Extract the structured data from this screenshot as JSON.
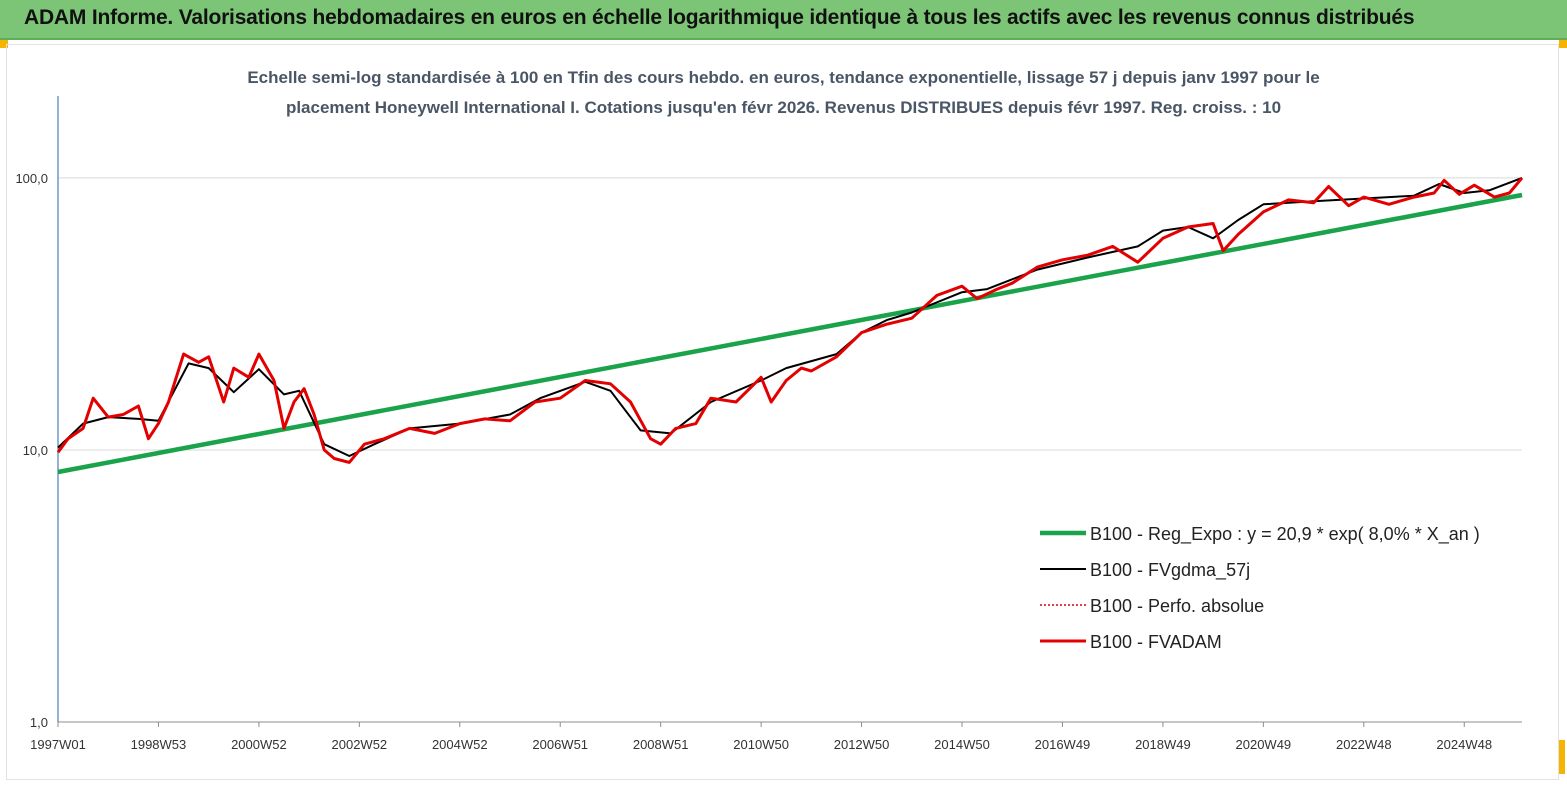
{
  "header": {
    "title": "ADAM Informe. Valorisations hebdomadaires en euros en échelle logarithmique identique à tous les actifs avec les revenus connus distribués"
  },
  "colors": {
    "banner": "#7cc576",
    "reg_expo": "#1aa34a",
    "fvgdma": "#000000",
    "perfo": "#e00000",
    "fvadam": "#e30000",
    "corner": "#f4b400"
  },
  "chart_data": {
    "type": "line",
    "title_line1": "Echelle semi-log standardisée à 100 en Tfin des cours hebdo. en euros, tendance exponentielle, lissage 57 j depuis janv 1997 pour le",
    "title_line2": "placement Honeywell International I. Cotations jusqu'en févr 2026. Revenus DISTRIBUES depuis févr 1997. Reg. croiss. : 10",
    "y_scale": "log",
    "ylim": [
      1,
      200
    ],
    "y_ticks": [
      {
        "value": 1,
        "label": "1,0"
      },
      {
        "value": 10,
        "label": "10,0"
      },
      {
        "value": 100,
        "label": "100,0"
      }
    ],
    "xlim": [
      1997.0,
      2026.15
    ],
    "x_ticks": [
      {
        "value": 1997.0,
        "label": "1997W01"
      },
      {
        "value": 1999.0,
        "label": "1998W53"
      },
      {
        "value": 2001.0,
        "label": "2000W52"
      },
      {
        "value": 2003.0,
        "label": "2002W52"
      },
      {
        "value": 2005.0,
        "label": "2004W52"
      },
      {
        "value": 2007.0,
        "label": "2006W51"
      },
      {
        "value": 2009.0,
        "label": "2008W51"
      },
      {
        "value": 2011.0,
        "label": "2010W50"
      },
      {
        "value": 2013.0,
        "label": "2012W50"
      },
      {
        "value": 2015.0,
        "label": "2014W50"
      },
      {
        "value": 2017.0,
        "label": "2016W49"
      },
      {
        "value": 2019.0,
        "label": "2018W49"
      },
      {
        "value": 2021.0,
        "label": "2020W49"
      },
      {
        "value": 2023.0,
        "label": "2022W48"
      },
      {
        "value": 2025.0,
        "label": "2024W48"
      }
    ],
    "legend_position": "bottom-right",
    "grid": "horizontal",
    "series": [
      {
        "name": "B100 - Reg_Expo : y = 20,9 * exp( 8,0% * X_an )",
        "key": "reg",
        "style": "thick",
        "x": [
          1997.0,
          2026.15
        ],
        "values": [
          8.3,
          86.5
        ]
      },
      {
        "name": "B100 - FVgdma_57j",
        "key": "gdma",
        "style": "thin",
        "x": [
          1997.0,
          1997.5,
          1998.0,
          1998.6,
          1999.0,
          1999.6,
          2000.0,
          2000.5,
          2001.0,
          2001.5,
          2001.8,
          2002.3,
          2002.8,
          2003.3,
          2004.0,
          2005.0,
          2006.0,
          2006.6,
          2007.5,
          2008.0,
          2008.6,
          2009.2,
          2010.0,
          2011.0,
          2011.5,
          2012.5,
          2013.0,
          2013.5,
          2014.0,
          2015.0,
          2015.5,
          2016.5,
          2017.5,
          2018.5,
          2019.0,
          2019.5,
          2020.0,
          2020.5,
          2021.0,
          2022.0,
          2022.5,
          2023.0,
          2024.0,
          2024.5,
          2025.0,
          2025.5,
          2026.15
        ],
        "values": [
          10.2,
          12.5,
          13.2,
          13.0,
          12.8,
          20.8,
          20.0,
          16.3,
          19.8,
          16.0,
          16.5,
          10.5,
          9.5,
          10.5,
          12.0,
          12.5,
          13.5,
          15.5,
          17.8,
          16.5,
          11.8,
          11.5,
          15.0,
          18.0,
          20.0,
          22.5,
          27.0,
          30.0,
          32.0,
          38.0,
          39.0,
          46.0,
          51.0,
          56.0,
          64.0,
          66.0,
          60.0,
          70.0,
          80.0,
          82.0,
          83.0,
          84.0,
          86.0,
          95.0,
          88.0,
          90.0,
          100.0
        ]
      },
      {
        "name": "B100 - Perfo. absolue",
        "key": "perfo",
        "style": "dotted",
        "x": [],
        "values": []
      },
      {
        "name": "B100 - FVADAM",
        "key": "fvadam",
        "style": "thick",
        "x": [
          1997.0,
          1997.2,
          1997.5,
          1997.7,
          1998.0,
          1998.3,
          1998.6,
          1998.8,
          1999.0,
          1999.2,
          1999.5,
          1999.8,
          2000.0,
          2000.3,
          2000.5,
          2000.8,
          2001.0,
          2001.3,
          2001.5,
          2001.7,
          2001.9,
          2002.1,
          2002.3,
          2002.5,
          2002.8,
          2003.1,
          2003.5,
          2004.0,
          2004.5,
          2005.0,
          2005.5,
          2006.0,
          2006.5,
          2007.0,
          2007.5,
          2008.0,
          2008.4,
          2008.8,
          2009.0,
          2009.3,
          2009.7,
          2010.0,
          2010.5,
          2011.0,
          2011.2,
          2011.5,
          2011.8,
          2012.0,
          2012.5,
          2013.0,
          2013.5,
          2014.0,
          2014.5,
          2015.0,
          2015.3,
          2015.7,
          2016.0,
          2016.5,
          2017.0,
          2017.5,
          2018.0,
          2018.5,
          2019.0,
          2019.5,
          2020.0,
          2020.2,
          2020.5,
          2021.0,
          2021.5,
          2022.0,
          2022.3,
          2022.7,
          2023.0,
          2023.5,
          2024.0,
          2024.4,
          2024.6,
          2024.9,
          2025.2,
          2025.6,
          2025.9,
          2026.15
        ],
        "values": [
          9.8,
          11.0,
          12.0,
          15.5,
          13.2,
          13.5,
          14.5,
          11.0,
          12.5,
          15.0,
          22.5,
          21.0,
          22.0,
          15.0,
          20.0,
          18.5,
          22.5,
          18.0,
          12.0,
          15.0,
          16.8,
          13.5,
          10.0,
          9.3,
          9.0,
          10.5,
          11.0,
          12.0,
          11.5,
          12.5,
          13.0,
          12.8,
          15.0,
          15.5,
          18.0,
          17.5,
          15.0,
          11.0,
          10.5,
          12.0,
          12.5,
          15.5,
          15.0,
          18.5,
          15.0,
          18.0,
          20.0,
          19.5,
          22.0,
          27.0,
          29.0,
          30.5,
          37.0,
          40.0,
          36.0,
          39.0,
          41.0,
          47.0,
          50.0,
          52.0,
          56.0,
          49.0,
          60.0,
          66.0,
          68.0,
          54.0,
          62.0,
          75.0,
          83.0,
          81.0,
          93.0,
          79.0,
          85.0,
          80.0,
          85.0,
          88.0,
          98.0,
          87.0,
          94.0,
          85.0,
          88.0,
          100.0
        ]
      }
    ]
  }
}
